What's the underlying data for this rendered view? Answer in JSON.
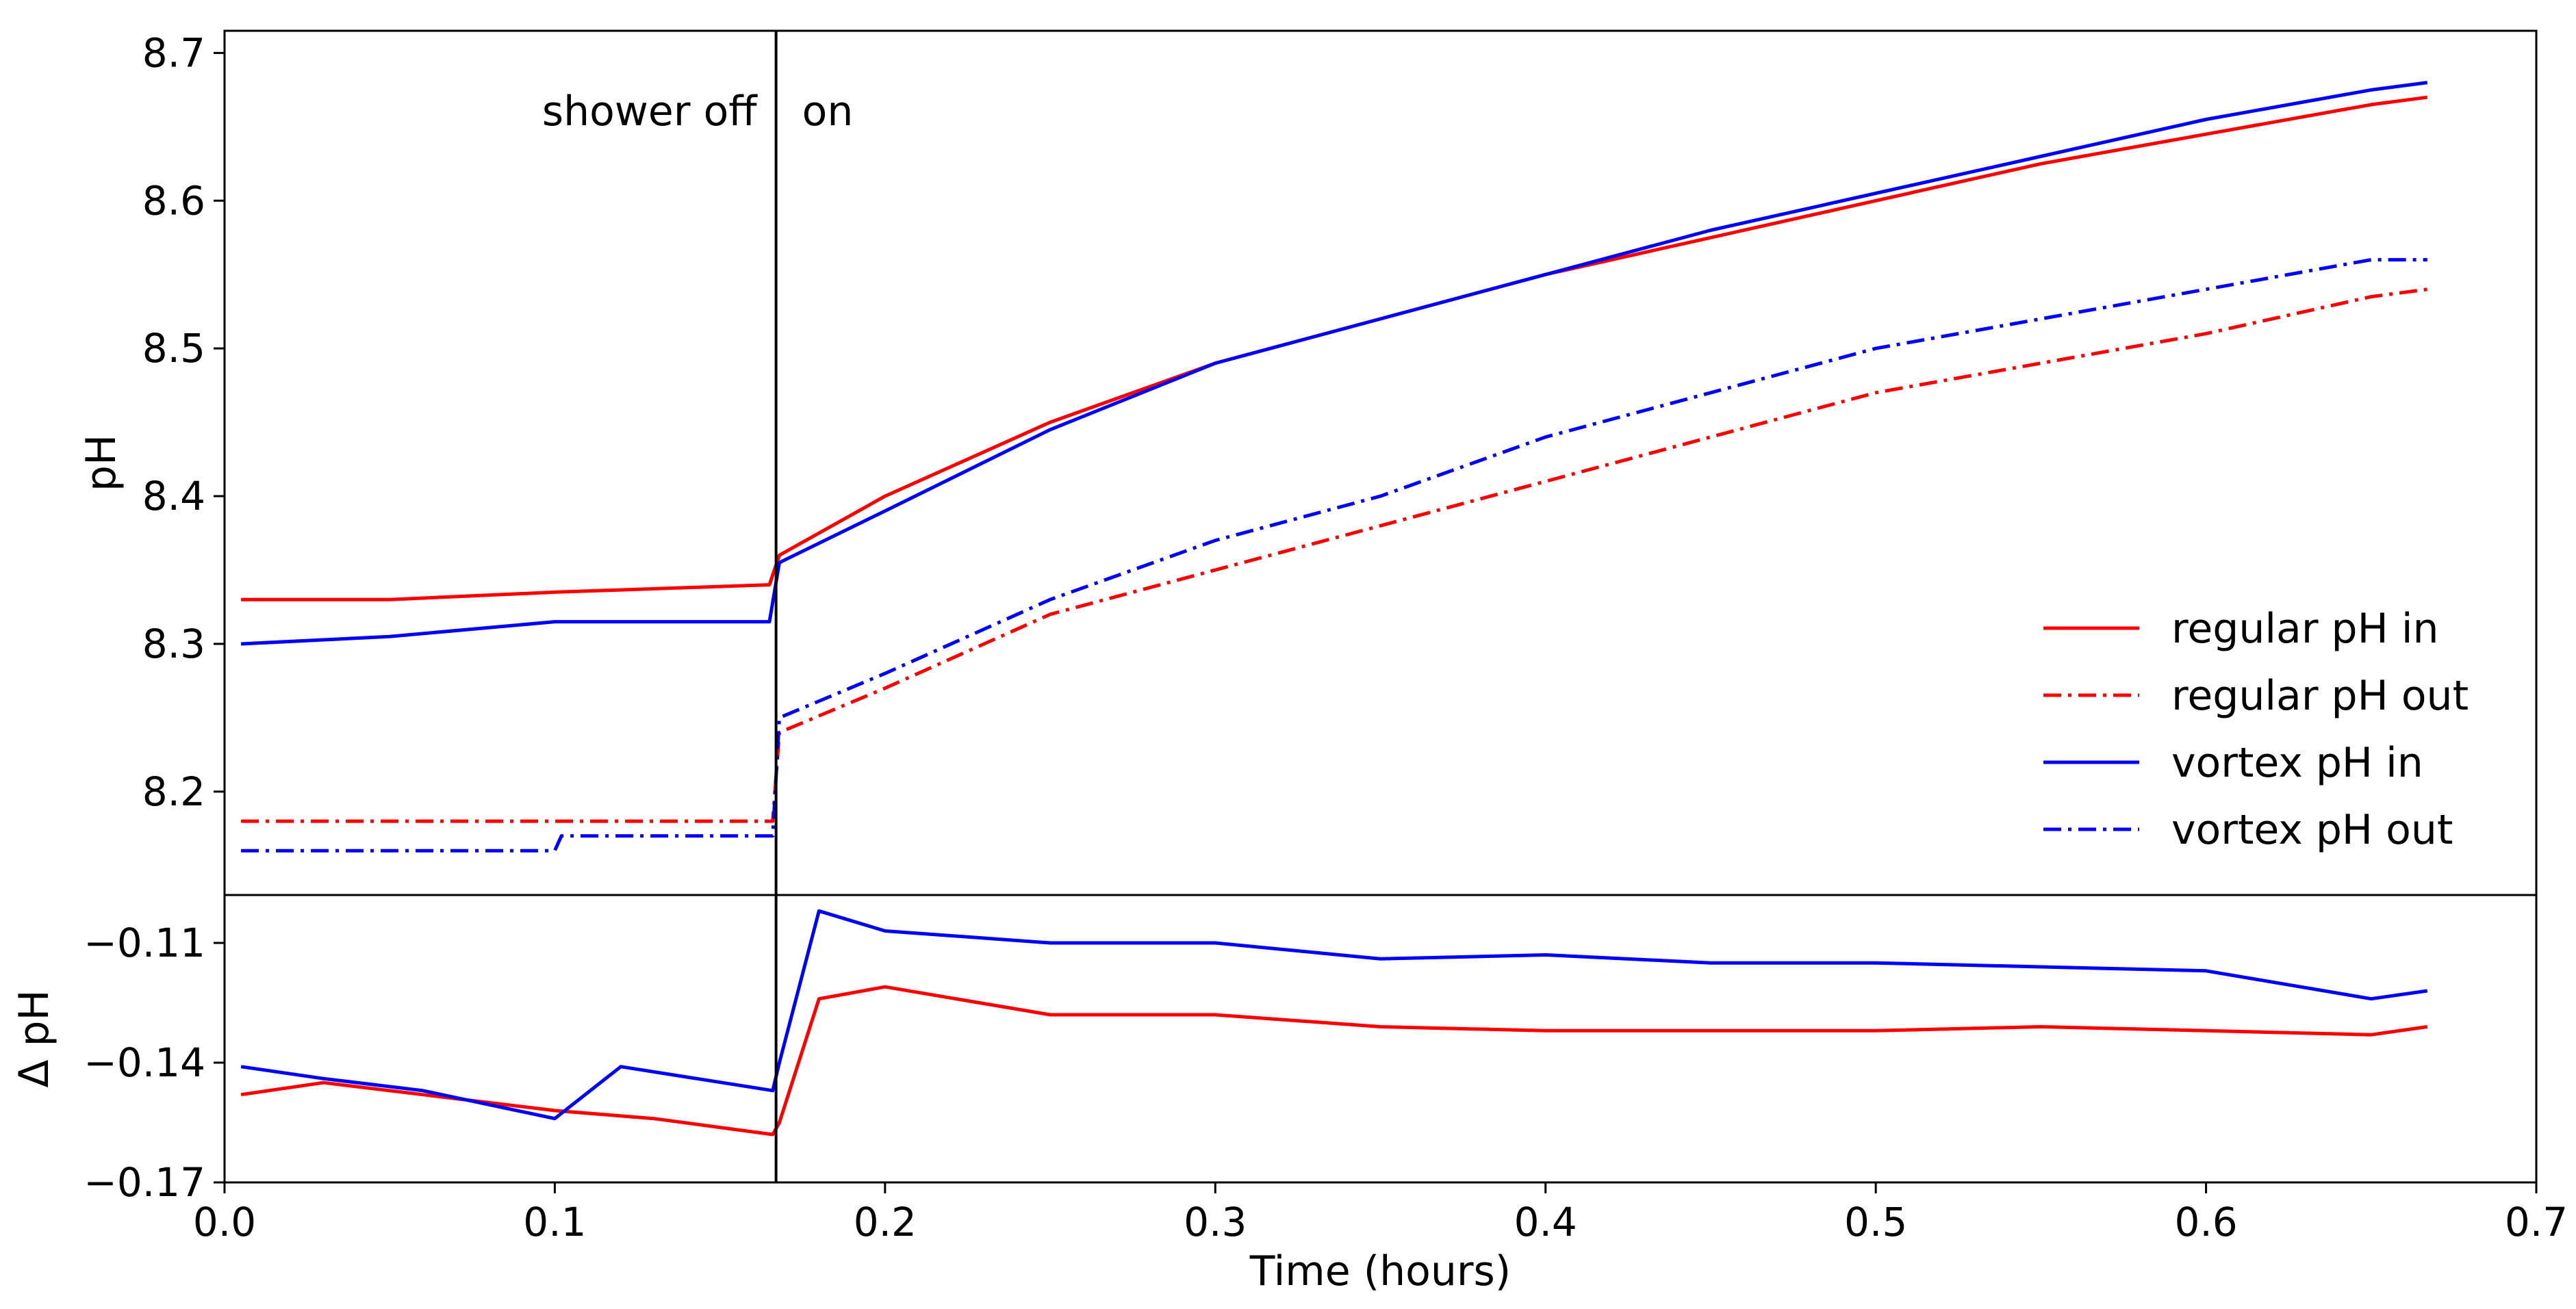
{
  "chart_data": {
    "type": "line",
    "colors": {
      "regular": "#ff0000",
      "vortex": "#0000ff",
      "axis": "#000000"
    },
    "xlabel": "Time (hours)",
    "xlim": [
      0.0,
      0.7
    ],
    "xticks": [
      "0.0",
      "0.1",
      "0.2",
      "0.3",
      "0.4",
      "0.5",
      "0.6",
      "0.7"
    ],
    "shower_on_time": 0.167,
    "annotations": {
      "off": "shower off",
      "on": "on"
    },
    "panels": [
      {
        "id": "ph",
        "ylabel": "pH",
        "ylim": [
          8.13,
          8.715
        ],
        "yticks": [
          "8.2",
          "8.3",
          "8.4",
          "8.5",
          "8.6",
          "8.7"
        ],
        "legend": {
          "position": "lower-right",
          "entries": [
            "regular pH in",
            "regular pH out",
            "vortex pH in",
            "vortex pH out"
          ]
        },
        "series": [
          {
            "name": "regular pH in",
            "color": "regular",
            "style": "solid",
            "x": [
              0.005,
              0.05,
              0.1,
              0.165,
              0.168,
              0.2,
              0.25,
              0.3,
              0.35,
              0.4,
              0.45,
              0.5,
              0.55,
              0.6,
              0.65,
              0.667
            ],
            "y": [
              8.33,
              8.33,
              8.335,
              8.34,
              8.36,
              8.4,
              8.45,
              8.49,
              8.52,
              8.55,
              8.575,
              8.6,
              8.625,
              8.645,
              8.665,
              8.67
            ]
          },
          {
            "name": "regular pH out",
            "color": "regular",
            "style": "dashdot",
            "x": [
              0.005,
              0.166,
              0.168,
              0.2,
              0.25,
              0.3,
              0.35,
              0.4,
              0.45,
              0.5,
              0.55,
              0.6,
              0.65,
              0.667
            ],
            "y": [
              8.18,
              8.18,
              8.24,
              8.27,
              8.32,
              8.35,
              8.38,
              8.41,
              8.44,
              8.47,
              8.49,
              8.51,
              8.535,
              8.54
            ]
          },
          {
            "name": "vortex pH in",
            "color": "vortex",
            "style": "solid",
            "x": [
              0.005,
              0.05,
              0.1,
              0.165,
              0.168,
              0.2,
              0.25,
              0.3,
              0.35,
              0.4,
              0.45,
              0.5,
              0.55,
              0.6,
              0.65,
              0.667
            ],
            "y": [
              8.3,
              8.305,
              8.315,
              8.315,
              8.355,
              8.39,
              8.445,
              8.49,
              8.52,
              8.55,
              8.58,
              8.605,
              8.63,
              8.655,
              8.675,
              8.68
            ]
          },
          {
            "name": "vortex pH out",
            "color": "vortex",
            "style": "dashdot",
            "x": [
              0.005,
              0.1,
              0.102,
              0.166,
              0.168,
              0.2,
              0.25,
              0.3,
              0.35,
              0.4,
              0.45,
              0.5,
              0.55,
              0.6,
              0.65,
              0.667
            ],
            "y": [
              8.16,
              8.16,
              8.17,
              8.17,
              8.25,
              8.28,
              8.33,
              8.37,
              8.4,
              8.44,
              8.47,
              8.5,
              8.52,
              8.54,
              8.56,
              8.56
            ]
          }
        ]
      },
      {
        "id": "delta",
        "ylabel": "Δ pH",
        "ylim": [
          -0.17,
          -0.098
        ],
        "yticks": [
          "−0.11",
          "−0.14",
          "−0.17"
        ],
        "series": [
          {
            "name": "regular Δ pH",
            "color": "regular",
            "style": "solid",
            "x": [
              0.005,
              0.03,
              0.06,
              0.1,
              0.13,
              0.166,
              0.168,
              0.18,
              0.2,
              0.25,
              0.3,
              0.35,
              0.4,
              0.45,
              0.5,
              0.55,
              0.6,
              0.65,
              0.667
            ],
            "y": [
              -0.148,
              -0.145,
              -0.148,
              -0.152,
              -0.154,
              -0.158,
              -0.155,
              -0.124,
              -0.121,
              -0.128,
              -0.128,
              -0.131,
              -0.132,
              -0.132,
              -0.132,
              -0.131,
              -0.132,
              -0.133,
              -0.131
            ]
          },
          {
            "name": "vortex Δ pH",
            "color": "vortex",
            "style": "solid",
            "x": [
              0.005,
              0.03,
              0.06,
              0.1,
              0.12,
              0.166,
              0.168,
              0.18,
              0.2,
              0.25,
              0.3,
              0.35,
              0.4,
              0.45,
              0.5,
              0.55,
              0.6,
              0.65,
              0.667
            ],
            "y": [
              -0.141,
              -0.144,
              -0.147,
              -0.154,
              -0.141,
              -0.147,
              -0.14,
              -0.102,
              -0.107,
              -0.11,
              -0.11,
              -0.114,
              -0.113,
              -0.115,
              -0.115,
              -0.116,
              -0.117,
              -0.124,
              -0.122
            ]
          }
        ]
      }
    ]
  }
}
